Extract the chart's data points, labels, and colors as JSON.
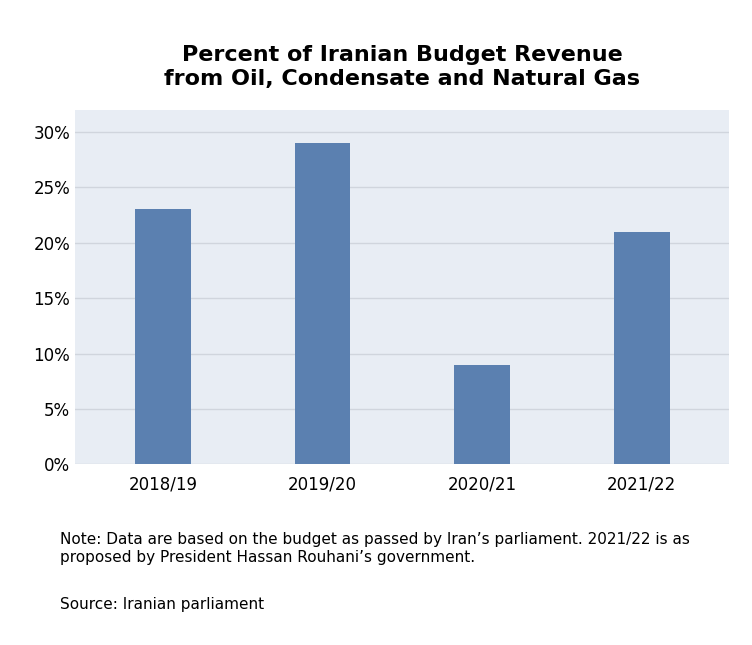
{
  "title": "Percent of Iranian Budget Revenue\nfrom Oil, Condensate and Natural Gas",
  "categories": [
    "2018/19",
    "2019/20",
    "2020/21",
    "2021/22"
  ],
  "values": [
    0.23,
    0.29,
    0.09,
    0.21
  ],
  "bar_color": "#5b80b0",
  "figure_background": "#ffffff",
  "plot_background": "#e8edf4",
  "grid_color": "#d0d5dd",
  "ylim": [
    0,
    0.32
  ],
  "yticks": [
    0,
    0.05,
    0.1,
    0.15,
    0.2,
    0.25,
    0.3
  ],
  "ytick_labels": [
    "0%",
    "5%",
    "10%",
    "15%",
    "20%",
    "25%",
    "30%"
  ],
  "title_fontsize": 16,
  "tick_fontsize": 12,
  "bar_width": 0.35,
  "note_text": "Note: Data are based on the budget as passed by Iran’s parliament. 2021/22 is as\nproposed by President Hassan Rouhani’s government.",
  "source_text": "Source: Iranian parliament",
  "note_fontsize": 11
}
